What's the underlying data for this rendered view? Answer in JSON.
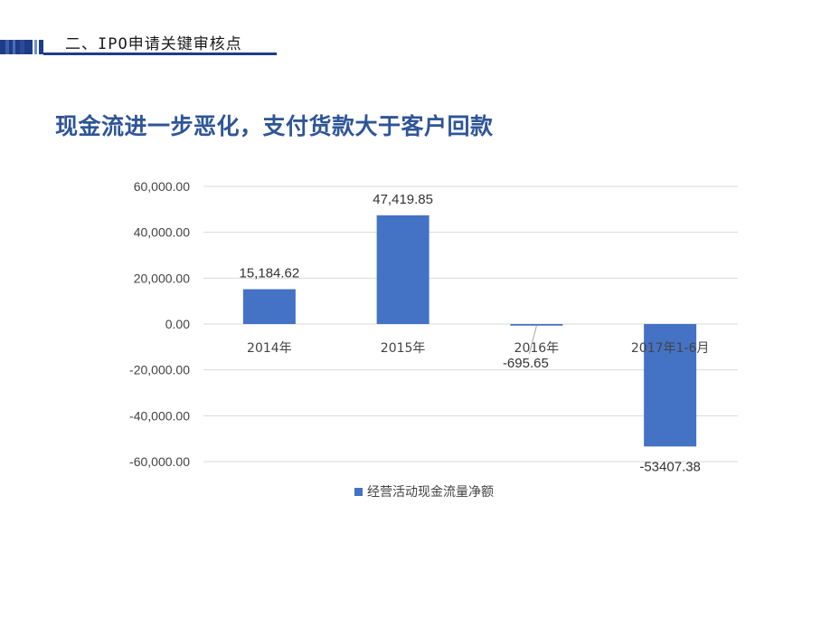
{
  "header": {
    "section_title": "二、IPO申请关键审核点"
  },
  "slide": {
    "title": "现金流进一步恶化，支付货款大于客户回款"
  },
  "colors": {
    "bar": "#4472c4",
    "title": "#2e5597",
    "header_dark": "#1f3c88",
    "header_light": "#6f8fc9"
  },
  "chart_data": {
    "type": "bar",
    "title": "",
    "xlabel": "",
    "ylabel": "",
    "categories": [
      "2014年",
      "2015年",
      "2016年",
      "2017年1-6月"
    ],
    "series": [
      {
        "name": "经营活动现金流量净额",
        "values": [
          15184.62,
          47419.85,
          -695.65,
          -53407.38
        ],
        "labels": [
          "15,184.62",
          "47,419.85",
          "-695.65",
          "-53407.38"
        ]
      }
    ],
    "ylim": [
      -60000,
      60000
    ],
    "yticks": [
      60000,
      40000,
      20000,
      0,
      -20000,
      -40000,
      -60000
    ],
    "ytick_labels": [
      "60,000.00",
      "40,000.00",
      "20,000.00",
      "0.00",
      "-20,000.00",
      "-40,000.00",
      "-60,000.00"
    ],
    "grid": true,
    "legend": "bottom"
  }
}
